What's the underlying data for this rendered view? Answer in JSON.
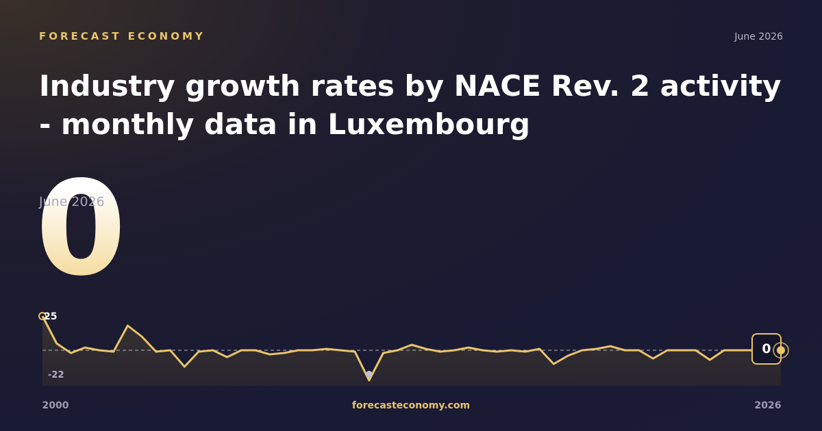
{
  "header": {
    "brand": "FORECAST ECONOMY",
    "date": "June 2026"
  },
  "title": "Industry growth rates by NACE Rev. 2 activity - monthly data in Luxembourg",
  "headline": {
    "value": 0,
    "period": "June 2026"
  },
  "chart_data": {
    "type": "line",
    "color": "#e9c46a",
    "values": [
      25,
      5,
      -2,
      2,
      0,
      -1,
      18,
      10,
      -1,
      0,
      -12,
      -1,
      0,
      -5,
      0,
      0,
      -3,
      -2,
      0,
      0,
      1,
      0,
      -1,
      -22,
      -2,
      0,
      4,
      1,
      -1,
      0,
      2,
      0,
      -1,
      0,
      -1,
      1,
      -10,
      -4,
      0,
      1,
      3,
      0,
      0,
      -6,
      0,
      0,
      0,
      -7,
      0,
      0,
      0,
      0,
      0
    ],
    "xlim": [
      2000,
      2026
    ],
    "xticks": [
      2000,
      2026
    ],
    "ylim": [
      -26,
      26
    ],
    "reference": 0,
    "max_label": 25,
    "min_label": -22,
    "end_label": 0
  },
  "footer": {
    "site": "forecasteconomy.com"
  }
}
